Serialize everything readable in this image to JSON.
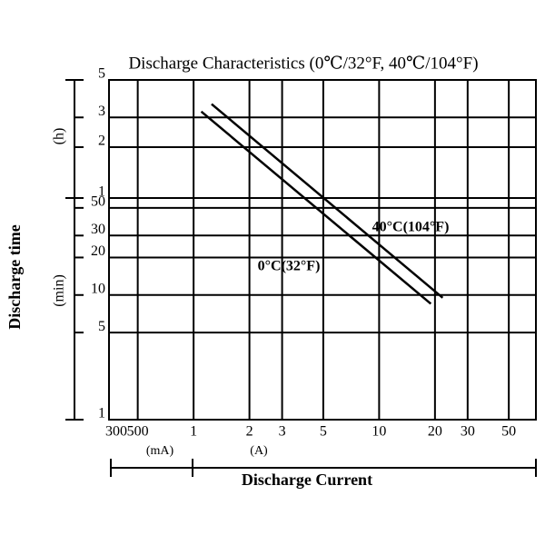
{
  "chart_data": {
    "type": "line",
    "title": "Discharge Characteristics (0℃/32°F, 40℃/104°F)",
    "y_axis_label": "Discharge time",
    "y_unit_label": "(min)",
    "y2_unit_label": "(h)",
    "x_axis_label": "Discharge Current",
    "x_unit_labels": [
      "(mA)",
      "(A)"
    ],
    "log_x": true,
    "log_y": true,
    "grid": true,
    "xlim": [
      0.35,
      70
    ],
    "xticks": [
      {
        "value": 0.3,
        "label": "300"
      },
      {
        "value": 0.5,
        "label": "500"
      },
      1,
      2,
      3,
      5,
      10,
      20,
      30,
      50
    ],
    "ylim": [
      1,
      60
    ],
    "yticks": [
      1,
      5,
      10,
      20,
      30,
      50
    ],
    "y2lim": [
      1,
      5
    ],
    "y2ticks": [
      1,
      2,
      3,
      5
    ],
    "series": [
      {
        "name": "0°C(32°F)",
        "color": "#000000",
        "x": [
          1.1,
          19
        ],
        "values": [
          195,
          8.5
        ]
      },
      {
        "name": "40°C(104°F)",
        "color": "#000000",
        "x": [
          1.25,
          22
        ],
        "values": [
          216,
          9.5
        ]
      }
    ]
  }
}
